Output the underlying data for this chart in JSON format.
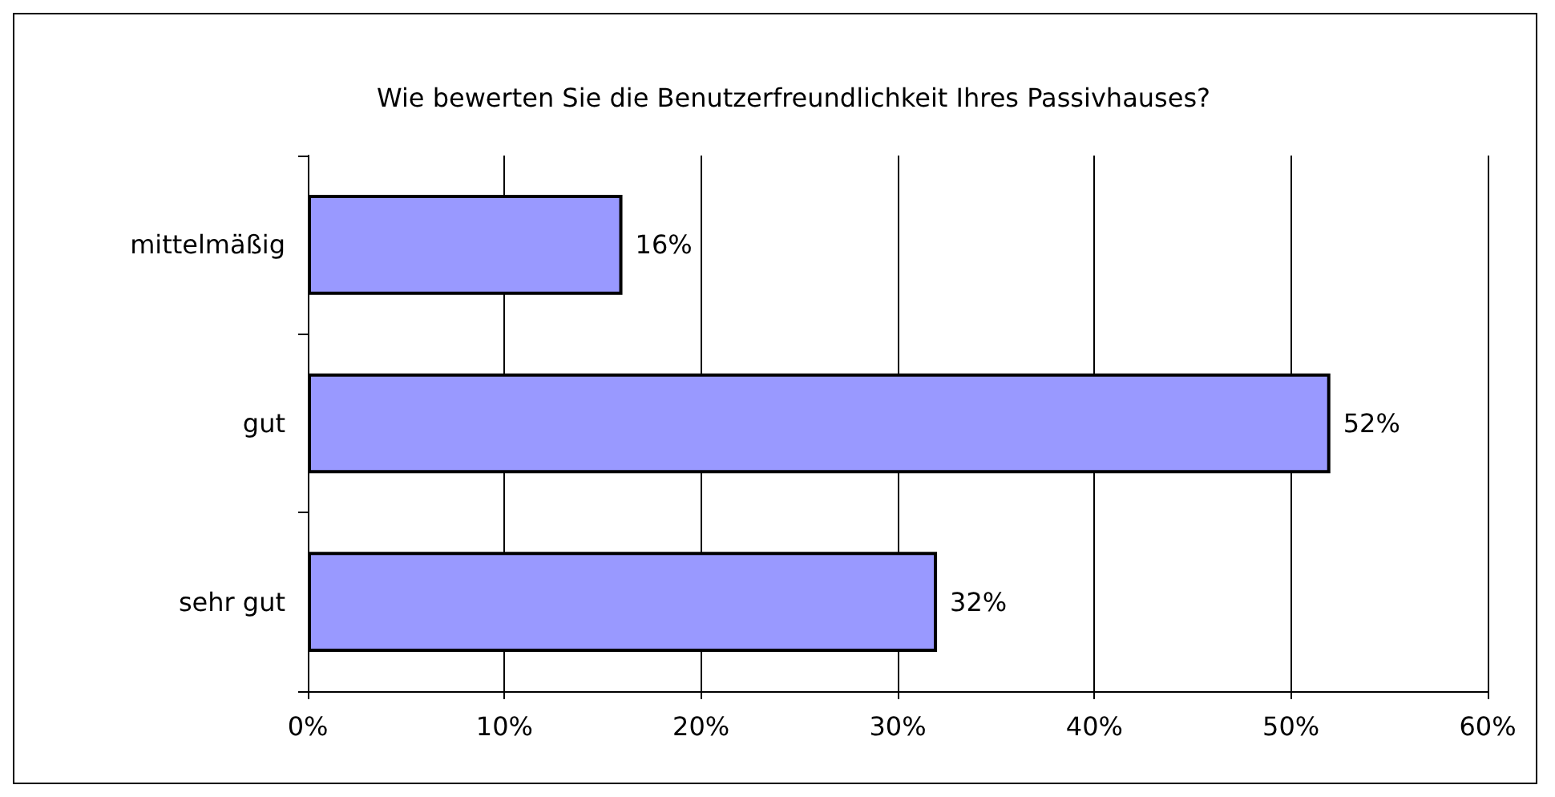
{
  "chart_data": {
    "type": "bar",
    "orientation": "horizontal",
    "title": "Wie bewerten Sie die Benutzerfreundlichkeit Ihres Passivhauses?",
    "categories": [
      "mittelmäßig",
      "gut",
      "sehr gut"
    ],
    "values": [
      16,
      52,
      32
    ],
    "value_labels": [
      "16%",
      "52%",
      "32%"
    ],
    "color": "#9999ff",
    "xlim": [
      0,
      60
    ],
    "xticks": [
      {
        "value": 0,
        "label": "0%"
      },
      {
        "value": 10,
        "label": "10%"
      },
      {
        "value": 20,
        "label": "20%"
      },
      {
        "value": 30,
        "label": "30%"
      },
      {
        "value": 40,
        "label": "40%"
      },
      {
        "value": 50,
        "label": "50%"
      },
      {
        "value": 60,
        "label": "60%"
      }
    ],
    "grid": "x"
  }
}
